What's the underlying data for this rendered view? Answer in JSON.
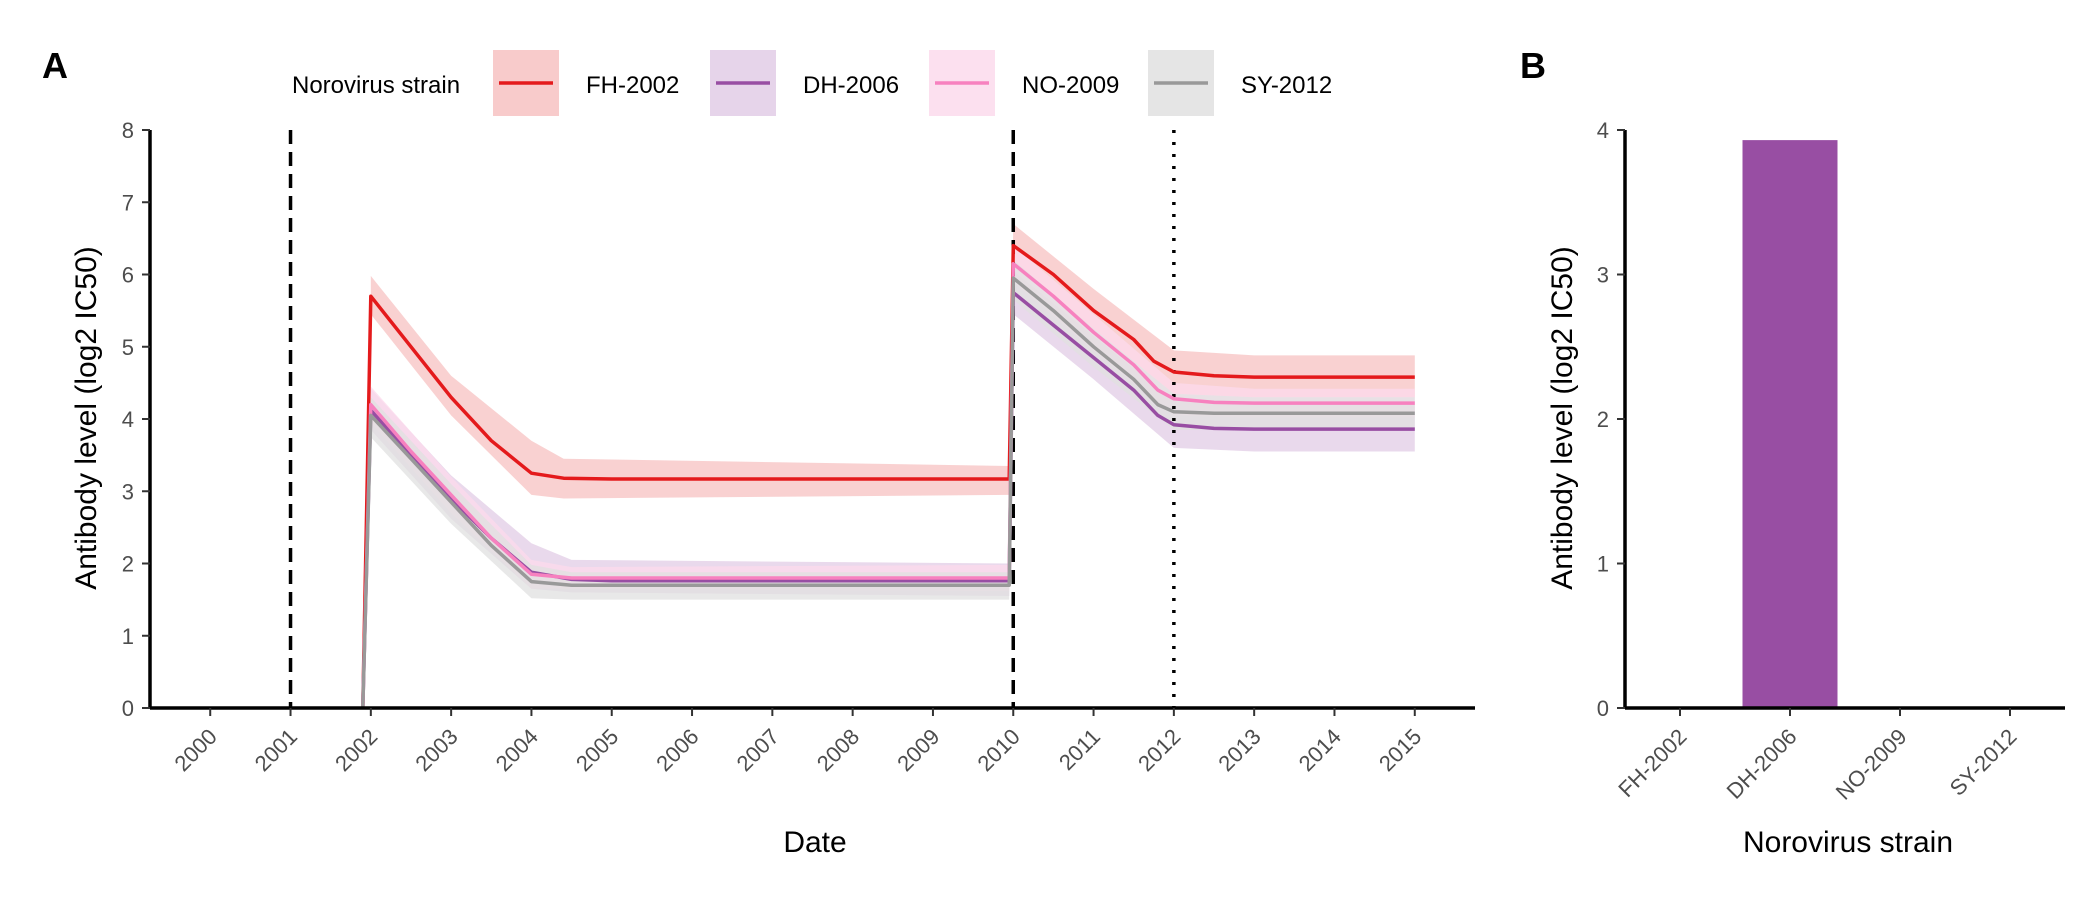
{
  "chart_data": [
    {
      "type": "line",
      "panel_label": "A",
      "title": "",
      "xlabel": "Date",
      "ylabel": "Antibody level (log2 IC50)",
      "xlim": [
        1999.25,
        2015.75
      ],
      "ylim": [
        0,
        8
      ],
      "x_ticks": [
        2000,
        2001,
        2002,
        2003,
        2004,
        2005,
        2006,
        2007,
        2008,
        2009,
        2010,
        2011,
        2012,
        2013,
        2014,
        2015
      ],
      "y_ticks": [
        0,
        1,
        2,
        3,
        4,
        5,
        6,
        7,
        8
      ],
      "grid": false,
      "legend": {
        "title": "Norovirus strain",
        "position": "top",
        "entries": [
          "FH-2002",
          "DH-2006",
          "NO-2009",
          "SY-2012"
        ]
      },
      "vertical_lines": [
        {
          "x": 2001,
          "style": "dashed"
        },
        {
          "x": 2010,
          "style": "dashed"
        },
        {
          "x": 2012,
          "style": "dotted"
        }
      ],
      "series": [
        {
          "name": "FH-2002",
          "color": "#e41a1c",
          "band_color": "#f7c2c2",
          "points": [
            [
              2001.9,
              0
            ],
            [
              2002.0,
              5.7
            ],
            [
              2002.5,
              5.0
            ],
            [
              2003.0,
              4.3
            ],
            [
              2003.5,
              3.7
            ],
            [
              2004.0,
              3.25
            ],
            [
              2004.4,
              3.18
            ],
            [
              2005,
              3.17
            ],
            [
              2007,
              3.17
            ],
            [
              2009,
              3.17
            ],
            [
              2009.95,
              3.17
            ],
            [
              2010.0,
              6.4
            ],
            [
              2010.5,
              6.0
            ],
            [
              2011.0,
              5.5
            ],
            [
              2011.5,
              5.1
            ],
            [
              2011.75,
              4.8
            ],
            [
              2012.0,
              4.65
            ],
            [
              2012.5,
              4.6
            ],
            [
              2013,
              4.58
            ],
            [
              2014,
              4.58
            ],
            [
              2015,
              4.58
            ]
          ],
          "band": [
            [
              2002.0,
              5.45,
              5.98
            ],
            [
              2003.0,
              4.05,
              4.6
            ],
            [
              2004.0,
              2.95,
              3.7
            ],
            [
              2004.4,
              2.9,
              3.45
            ],
            [
              2009.95,
              2.95,
              3.35
            ],
            [
              2010.0,
              6.1,
              6.7
            ],
            [
              2011.0,
              5.25,
              5.8
            ],
            [
              2012.0,
              4.35,
              4.95
            ],
            [
              2013,
              4.3,
              4.88
            ],
            [
              2015,
              4.3,
              4.88
            ]
          ]
        },
        {
          "name": "DH-2006",
          "color": "#984ea3",
          "band_color": "#e2cce6",
          "points": [
            [
              2001.9,
              0
            ],
            [
              2002.0,
              4.12
            ],
            [
              2002.5,
              3.5
            ],
            [
              2003.0,
              2.9
            ],
            [
              2003.5,
              2.35
            ],
            [
              2004.0,
              1.88
            ],
            [
              2004.5,
              1.78
            ],
            [
              2005,
              1.76
            ],
            [
              2007,
              1.76
            ],
            [
              2009,
              1.76
            ],
            [
              2009.95,
              1.76
            ],
            [
              2010.0,
              5.75
            ],
            [
              2010.5,
              5.3
            ],
            [
              2011.0,
              4.85
            ],
            [
              2011.5,
              4.4
            ],
            [
              2011.8,
              4.05
            ],
            [
              2012.0,
              3.92
            ],
            [
              2012.5,
              3.87
            ],
            [
              2013,
              3.86
            ],
            [
              2014,
              3.86
            ],
            [
              2015,
              3.86
            ]
          ],
          "band": [
            [
              2002.0,
              3.85,
              4.42
            ],
            [
              2003.0,
              2.62,
              3.22
            ],
            [
              2004.0,
              1.65,
              2.28
            ],
            [
              2004.5,
              1.6,
              2.05
            ],
            [
              2009.95,
              1.55,
              2.0
            ],
            [
              2010.0,
              5.45,
              6.05
            ],
            [
              2011.0,
              4.55,
              5.15
            ],
            [
              2012.0,
              3.6,
              4.25
            ],
            [
              2013,
              3.55,
              4.2
            ],
            [
              2015,
              3.55,
              4.2
            ]
          ]
        },
        {
          "name": "NO-2009",
          "color": "#f781bf",
          "band_color": "#fcdaec",
          "points": [
            [
              2001.9,
              0
            ],
            [
              2002.0,
              4.2
            ],
            [
              2002.5,
              3.55
            ],
            [
              2003.0,
              2.95
            ],
            [
              2003.5,
              2.35
            ],
            [
              2004.0,
              1.85
            ],
            [
              2004.5,
              1.8
            ],
            [
              2005,
              1.8
            ],
            [
              2007,
              1.8
            ],
            [
              2009,
              1.8
            ],
            [
              2009.95,
              1.8
            ],
            [
              2010.0,
              6.15
            ],
            [
              2010.5,
              5.7
            ],
            [
              2011.0,
              5.2
            ],
            [
              2011.5,
              4.75
            ],
            [
              2011.8,
              4.4
            ],
            [
              2012.0,
              4.28
            ],
            [
              2012.5,
              4.23
            ],
            [
              2013,
              4.22
            ],
            [
              2014,
              4.22
            ],
            [
              2015,
              4.22
            ]
          ],
          "band": [
            [
              2002.0,
              3.95,
              4.45
            ],
            [
              2003.0,
              2.7,
              3.2
            ],
            [
              2004.0,
              1.65,
              2.05
            ],
            [
              2004.5,
              1.65,
              1.95
            ],
            [
              2009.95,
              1.62,
              1.98
            ],
            [
              2010.0,
              5.9,
              6.4
            ],
            [
              2011.0,
              4.95,
              5.45
            ],
            [
              2012.0,
              4.05,
              4.5
            ],
            [
              2013,
              4.02,
              4.42
            ],
            [
              2015,
              4.02,
              4.42
            ]
          ]
        },
        {
          "name": "SY-2012",
          "color": "#999999",
          "band_color": "#e0e0e0",
          "points": [
            [
              2001.9,
              0
            ],
            [
              2002.0,
              4.05
            ],
            [
              2002.5,
              3.45
            ],
            [
              2003.0,
              2.85
            ],
            [
              2003.5,
              2.25
            ],
            [
              2004.0,
              1.75
            ],
            [
              2004.5,
              1.7
            ],
            [
              2005,
              1.7
            ],
            [
              2007,
              1.7
            ],
            [
              2009,
              1.7
            ],
            [
              2009.95,
              1.7
            ],
            [
              2010.0,
              5.95
            ],
            [
              2010.5,
              5.5
            ],
            [
              2011.0,
              5.0
            ],
            [
              2011.5,
              4.55
            ],
            [
              2011.8,
              4.2
            ],
            [
              2012.0,
              4.1
            ],
            [
              2012.5,
              4.08
            ],
            [
              2013,
              4.08
            ],
            [
              2014,
              4.08
            ],
            [
              2015,
              4.08
            ]
          ],
          "band": [
            [
              2002.0,
              3.75,
              4.3
            ],
            [
              2003.0,
              2.55,
              3.1
            ],
            [
              2004.0,
              1.52,
              1.98
            ],
            [
              2004.5,
              1.5,
              1.88
            ],
            [
              2009.95,
              1.5,
              1.88
            ],
            [
              2010.0,
              5.65,
              6.2
            ],
            [
              2011.0,
              4.72,
              5.25
            ],
            [
              2012.0,
              3.85,
              4.35
            ],
            [
              2013,
              3.85,
              4.3
            ],
            [
              2015,
              3.85,
              4.3
            ]
          ]
        }
      ]
    },
    {
      "type": "bar",
      "panel_label": "B",
      "title": "",
      "xlabel": "Norovirus strain",
      "ylabel": "Antibody level (log2 IC50)",
      "categories": [
        "FH-2002",
        "DH-2006",
        "NO-2009",
        "SY-2012"
      ],
      "values": [
        0,
        3.93,
        0,
        0
      ],
      "colors": [
        "#e41a1c",
        "#984ea3",
        "#f781bf",
        "#999999"
      ],
      "ylim": [
        0,
        4
      ],
      "y_ticks": [
        0,
        1,
        2,
        3,
        4
      ],
      "grid": false
    }
  ]
}
